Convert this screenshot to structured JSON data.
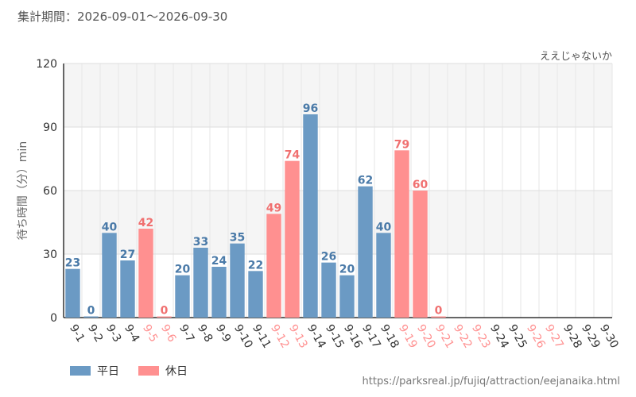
{
  "header": {
    "period": "集計期間：2026-09-01～2026-09-30"
  },
  "colors": {
    "weekday": "#6b9ac4",
    "holiday": "#ff9090",
    "weekday_label": "#4a7aa8",
    "holiday_label": "#f07070"
  },
  "legend": {
    "weekday": "平日",
    "holiday": "休日"
  },
  "source_url": "https://parksreal.jp/fujiq/attraction/eejanaika.html",
  "chart_data": {
    "type": "bar",
    "title": "ええじゃないか",
    "ylabel": "待ち時間（分）min",
    "ylim": [
      0,
      120
    ],
    "yticks": [
      0,
      30,
      60,
      90,
      120
    ],
    "grid": true,
    "legend_position": "bottom-left",
    "categories": [
      "9-1",
      "9-2",
      "9-3",
      "9-4",
      "9-5",
      "9-6",
      "9-7",
      "9-8",
      "9-9",
      "9-10",
      "9-11",
      "9-12",
      "9-13",
      "9-14",
      "9-15",
      "9-16",
      "9-17",
      "9-18",
      "9-19",
      "9-20",
      "9-21",
      "9-22",
      "9-23",
      "9-24",
      "9-25",
      "9-26",
      "9-27",
      "9-28",
      "9-29",
      "9-30"
    ],
    "values": [
      23,
      0,
      40,
      27,
      42,
      0,
      20,
      33,
      24,
      35,
      22,
      49,
      74,
      96,
      26,
      20,
      62,
      40,
      79,
      60,
      0,
      null,
      null,
      null,
      null,
      null,
      null,
      null,
      null,
      null
    ],
    "day_type": [
      "weekday",
      "weekday",
      "weekday",
      "weekday",
      "holiday",
      "holiday",
      "weekday",
      "weekday",
      "weekday",
      "weekday",
      "weekday",
      "holiday",
      "holiday",
      "weekday",
      "weekday",
      "weekday",
      "weekday",
      "weekday",
      "holiday",
      "holiday",
      "holiday",
      "holiday",
      "holiday",
      "weekday",
      "weekday",
      "holiday",
      "holiday",
      "weekday",
      "weekday",
      "weekday"
    ]
  }
}
